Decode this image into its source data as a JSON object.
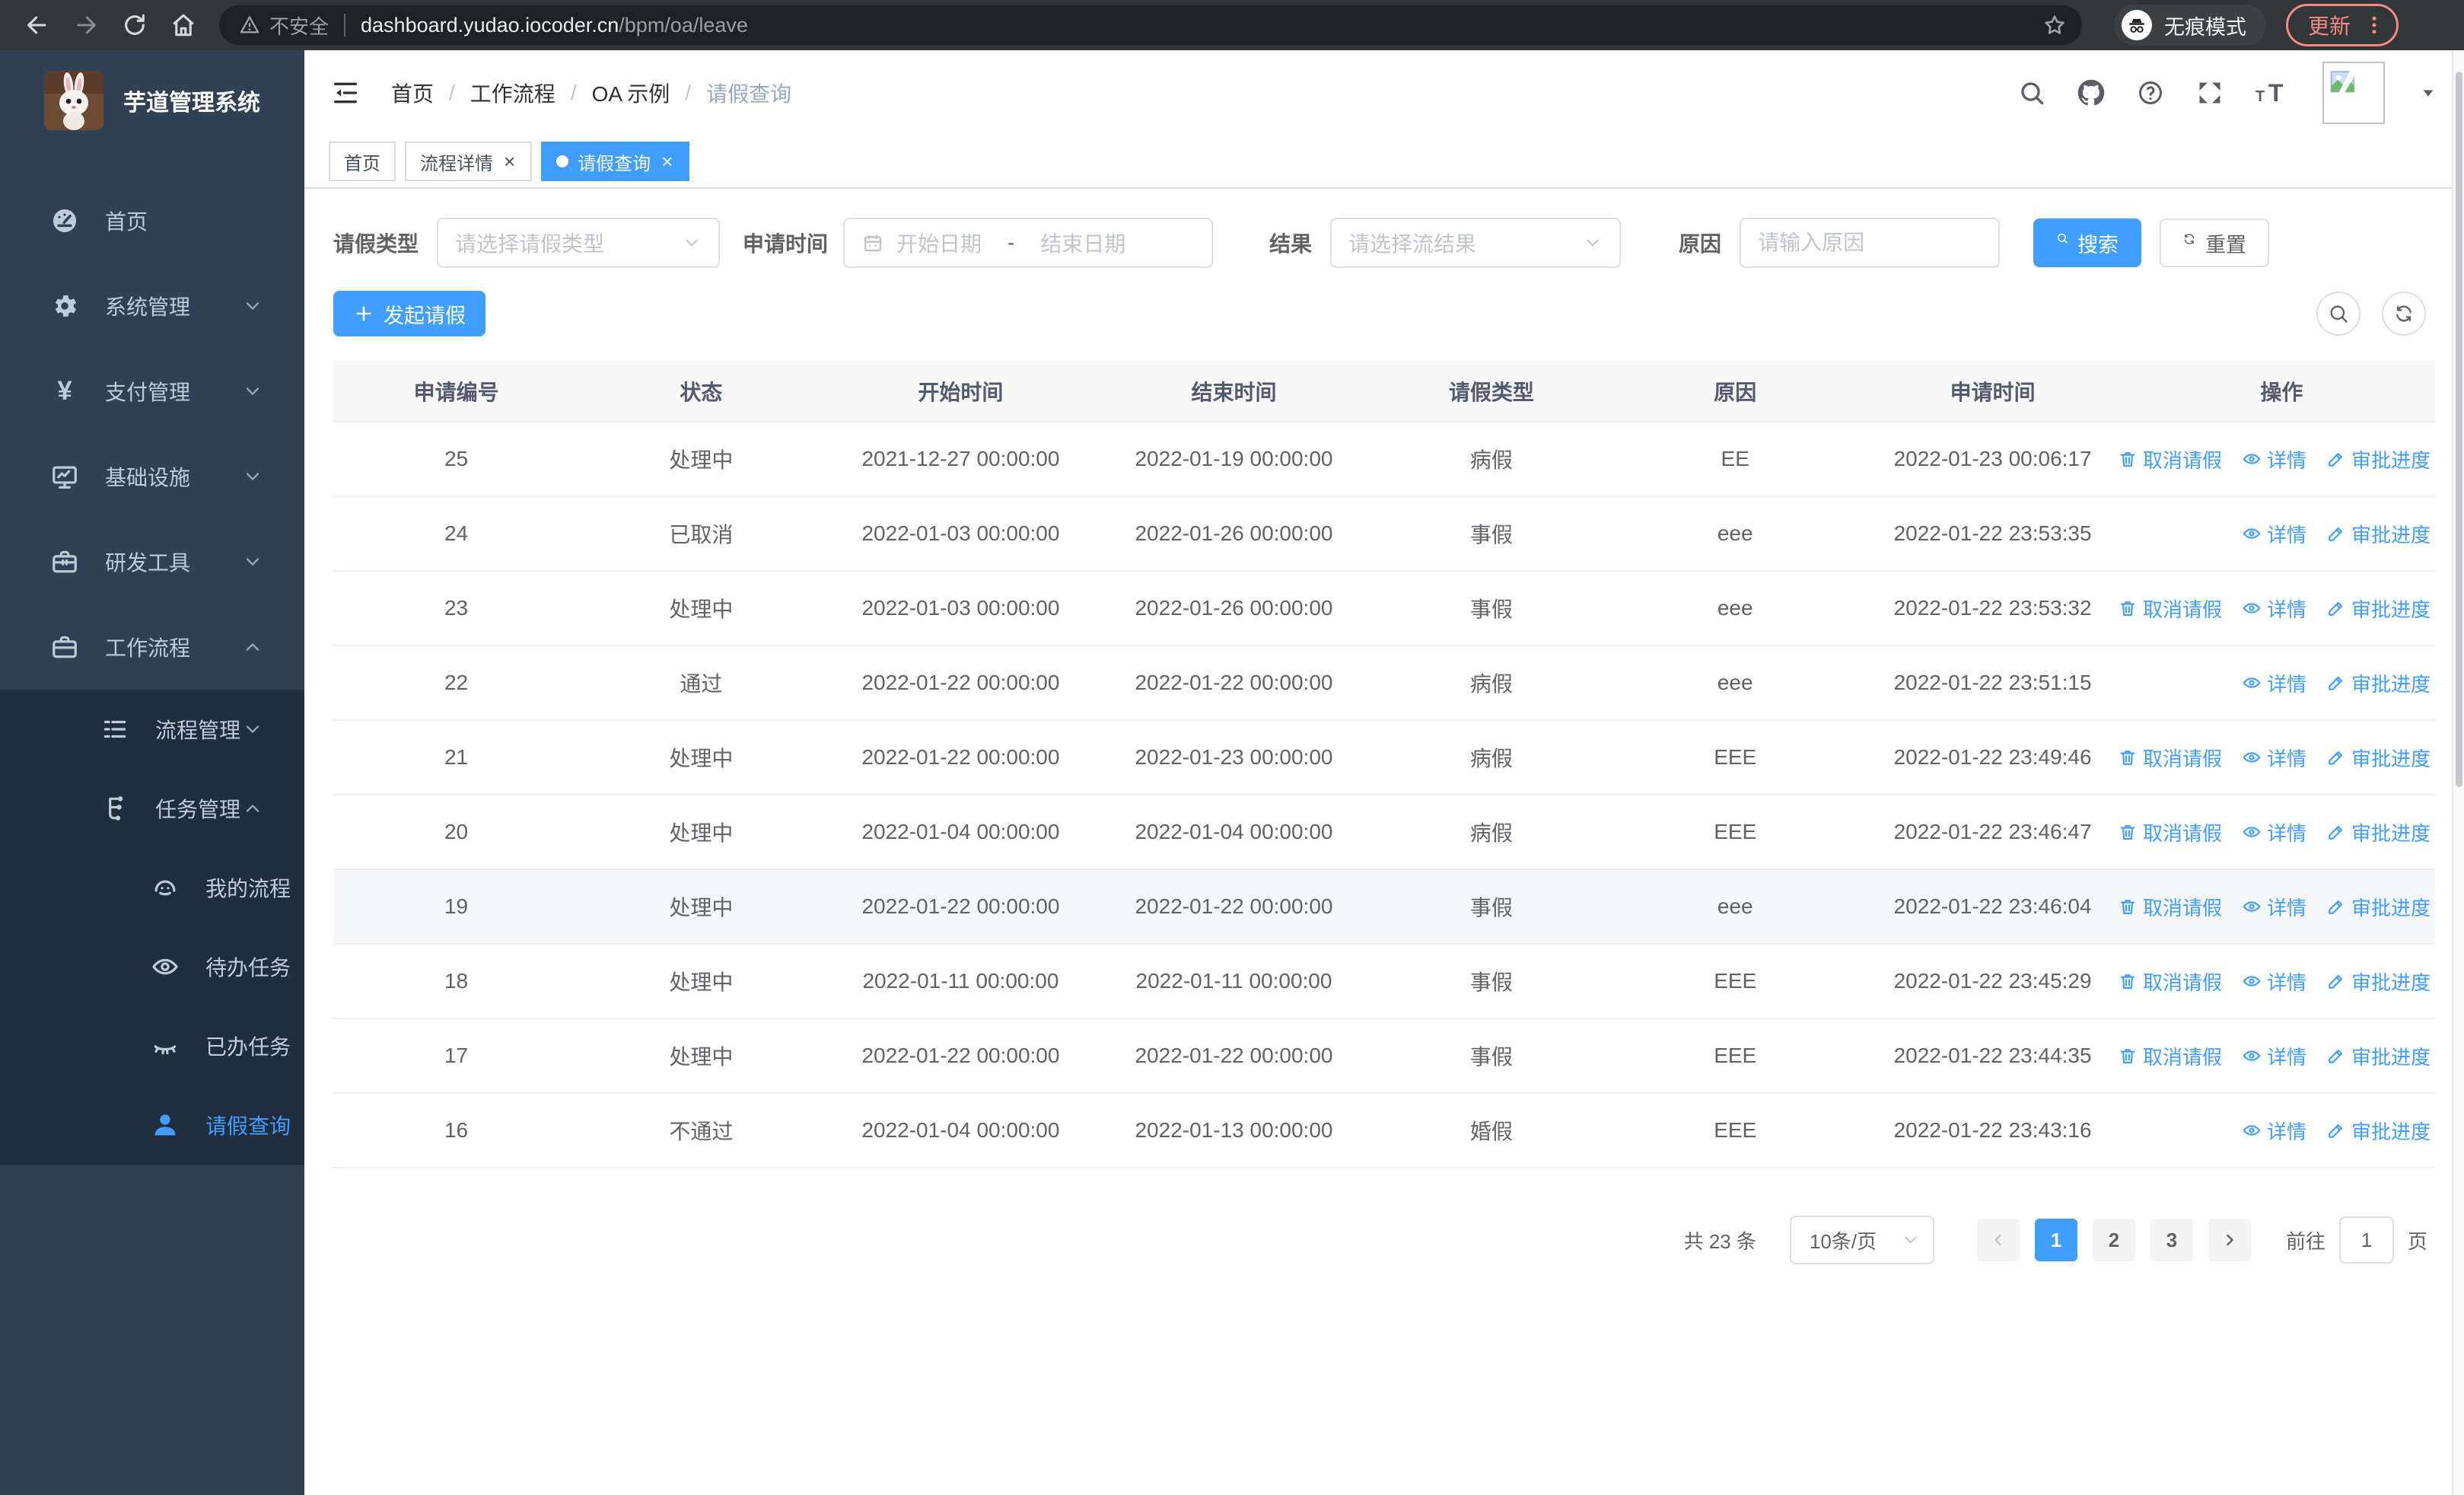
{
  "browser": {
    "security_label": "不安全",
    "url_host": "dashboard.yudao.iocoder.cn",
    "url_path": "/bpm/oa/leave",
    "incognito_label": "无痕模式",
    "update_label": "更新"
  },
  "sidebar": {
    "app_title": "芋道管理系统",
    "items": [
      {
        "label": "首页",
        "icon": "dashboard",
        "level": 1
      },
      {
        "label": "系统管理",
        "icon": "gear",
        "level": 1,
        "arrow": "down"
      },
      {
        "label": "支付管理",
        "icon": "yen",
        "level": 1,
        "arrow": "down"
      },
      {
        "label": "基础设施",
        "icon": "monitor",
        "level": 1,
        "arrow": "down"
      },
      {
        "label": "研发工具",
        "icon": "toolbox",
        "level": 1,
        "arrow": "down"
      },
      {
        "label": "工作流程",
        "icon": "briefcase",
        "level": 1,
        "arrow": "up"
      }
    ],
    "sub_items": [
      {
        "label": "流程管理",
        "icon": "list",
        "level": 2,
        "arrow": "down"
      },
      {
        "label": "任务管理",
        "icon": "flow",
        "level": 2,
        "arrow": "up"
      },
      {
        "label": "我的流程",
        "icon": "robot",
        "level": 3
      },
      {
        "label": "待办任务",
        "icon": "eye-open",
        "level": 3
      },
      {
        "label": "已办任务",
        "icon": "eye-closed",
        "level": 3
      },
      {
        "label": "请假查询",
        "icon": "user",
        "level": 3,
        "active": true
      }
    ]
  },
  "header": {
    "breadcrumb": [
      "首页",
      "工作流程",
      "OA 示例",
      "请假查询"
    ]
  },
  "tabs": [
    {
      "label": "首页",
      "closable": false,
      "active": false
    },
    {
      "label": "流程详情",
      "closable": true,
      "active": false
    },
    {
      "label": "请假查询",
      "closable": true,
      "active": true
    }
  ],
  "filters": {
    "type_label": "请假类型",
    "type_placeholder": "请选择请假类型",
    "time_label": "申请时间",
    "start_placeholder": "开始日期",
    "range_separator": "-",
    "end_placeholder": "结束日期",
    "result_label": "结果",
    "result_placeholder": "请选择流结果",
    "reason_label": "原因",
    "reason_placeholder": "请输入原因",
    "search_label": "搜索",
    "reset_label": "重置"
  },
  "toolbar": {
    "create_label": "发起请假"
  },
  "table": {
    "columns": [
      "申请编号",
      "状态",
      "开始时间",
      "结束时间",
      "请假类型",
      "原因",
      "申请时间",
      "操作"
    ],
    "action_labels": {
      "cancel": "取消请假",
      "detail": "详情",
      "progress": "审批进度"
    },
    "rows": [
      {
        "id": "25",
        "status": "处理中",
        "start": "2021-12-27 00:00:00",
        "end": "2022-01-19 00:00:00",
        "type": "病假",
        "reason": "EE",
        "applied": "2022-01-23 00:06:17",
        "cancellable": true,
        "highlighted": false
      },
      {
        "id": "24",
        "status": "已取消",
        "start": "2022-01-03 00:00:00",
        "end": "2022-01-26 00:00:00",
        "type": "事假",
        "reason": "eee",
        "applied": "2022-01-22 23:53:35",
        "cancellable": false,
        "highlighted": false
      },
      {
        "id": "23",
        "status": "处理中",
        "start": "2022-01-03 00:00:00",
        "end": "2022-01-26 00:00:00",
        "type": "事假",
        "reason": "eee",
        "applied": "2022-01-22 23:53:32",
        "cancellable": true,
        "highlighted": false
      },
      {
        "id": "22",
        "status": "通过",
        "start": "2022-01-22 00:00:00",
        "end": "2022-01-22 00:00:00",
        "type": "病假",
        "reason": "eee",
        "applied": "2022-01-22 23:51:15",
        "cancellable": false,
        "highlighted": false
      },
      {
        "id": "21",
        "status": "处理中",
        "start": "2022-01-22 00:00:00",
        "end": "2022-01-23 00:00:00",
        "type": "病假",
        "reason": "EEE",
        "applied": "2022-01-22 23:49:46",
        "cancellable": true,
        "highlighted": false
      },
      {
        "id": "20",
        "status": "处理中",
        "start": "2022-01-04 00:00:00",
        "end": "2022-01-04 00:00:00",
        "type": "病假",
        "reason": "EEE",
        "applied": "2022-01-22 23:46:47",
        "cancellable": true,
        "highlighted": false
      },
      {
        "id": "19",
        "status": "处理中",
        "start": "2022-01-22 00:00:00",
        "end": "2022-01-22 00:00:00",
        "type": "事假",
        "reason": "eee",
        "applied": "2022-01-22 23:46:04",
        "cancellable": true,
        "highlighted": true
      },
      {
        "id": "18",
        "status": "处理中",
        "start": "2022-01-11 00:00:00",
        "end": "2022-01-11 00:00:00",
        "type": "事假",
        "reason": "EEE",
        "applied": "2022-01-22 23:45:29",
        "cancellable": true,
        "highlighted": false
      },
      {
        "id": "17",
        "status": "处理中",
        "start": "2022-01-22 00:00:00",
        "end": "2022-01-22 00:00:00",
        "type": "事假",
        "reason": "EEE",
        "applied": "2022-01-22 23:44:35",
        "cancellable": true,
        "highlighted": false
      },
      {
        "id": "16",
        "status": "不通过",
        "start": "2022-01-04 00:00:00",
        "end": "2022-01-13 00:00:00",
        "type": "婚假",
        "reason": "EEE",
        "applied": "2022-01-22 23:43:16",
        "cancellable": false,
        "highlighted": false
      }
    ]
  },
  "pagination": {
    "total_label": "共 23 条",
    "page_size": "10条/页",
    "pages": [
      "1",
      "2",
      "3"
    ],
    "active_page": "1",
    "goto_label": "前往",
    "goto_value": "1",
    "page_label": "页"
  },
  "colors": {
    "accent": "#409eff",
    "sidebar_bg": "#304156",
    "submenu_bg": "#1f2d3d"
  }
}
